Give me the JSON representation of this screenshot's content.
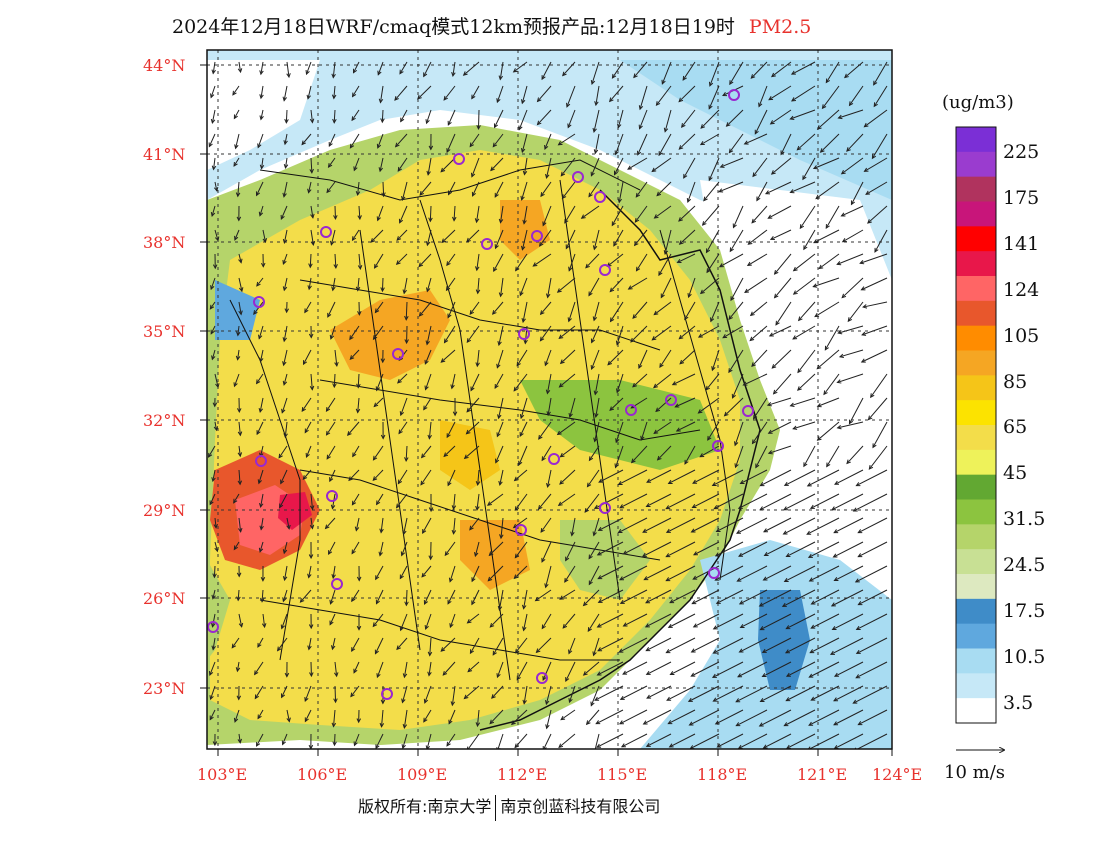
{
  "title": {
    "main": "2024年12月18日WRF/cmaq模式12km预报产品:12月18日19时",
    "pollutant": "PM2.5"
  },
  "map": {
    "lat_labels": [
      "44°N",
      "41°N",
      "38°N",
      "35°N",
      "32°N",
      "29°N",
      "26°N",
      "23°N"
    ],
    "lon_labels": [
      "103°E",
      "106°E",
      "109°E",
      "112°E",
      "115°E",
      "118°E",
      "121°E",
      "124°E"
    ],
    "colors": {
      "axis_label": "#e8322d",
      "station_marker": "#9a28d0",
      "ocean": "#ffffff",
      "low": "#d8eef8",
      "high": "#f0dc5a"
    }
  },
  "colorbar": {
    "unit": "(ug/m3)",
    "labels": [
      "225",
      "175",
      "141",
      "124",
      "105",
      "85",
      "65",
      "45",
      "31.5",
      "24.5",
      "17.5",
      "10.5",
      "3.5"
    ],
    "colors": [
      "#7b2fd6",
      "#9a3ccf",
      "#b0335e",
      "#c8157a",
      "#ff0000",
      "#e8174a",
      "#ff6565",
      "#e8572c",
      "#ff8c00",
      "#f5a623",
      "#f5c518",
      "#fce300",
      "#f3dd4a",
      "#eef25a",
      "#62a832",
      "#8cc43f",
      "#b5d46a",
      "#c8e094",
      "#dde9c0",
      "#3f8cc8",
      "#5fa8de",
      "#a8dcf2",
      "#c6e8f7",
      "#ffffff"
    ]
  },
  "wind": {
    "scale_label": "10  m/s"
  },
  "footer": {
    "copyright_left": "版权所有:南京大学",
    "copyright_right": "南京创蓝科技有限公司"
  }
}
